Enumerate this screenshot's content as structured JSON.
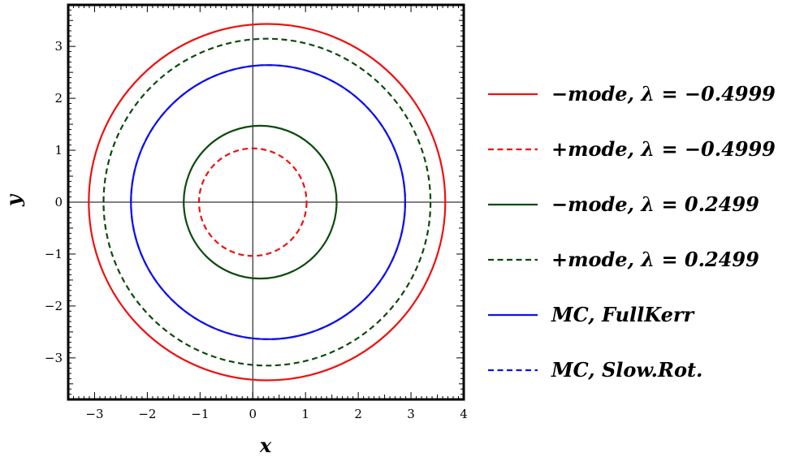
{
  "chart_data": {
    "type": "line",
    "xlabel": "x",
    "ylabel": "y",
    "xlim": [
      -3.5,
      4.0
    ],
    "ylim": [
      -3.8,
      3.8
    ],
    "x_ticks": [
      -3,
      -2,
      -1,
      0,
      1,
      2,
      3,
      4
    ],
    "y_ticks": [
      -3,
      -2,
      -1,
      0,
      1,
      2,
      3
    ],
    "grid": false,
    "legend_position": "right",
    "series": [
      {
        "name": "−mode, λ = −0.4999",
        "color": "#ee1111",
        "dash": "solid",
        "cx": 0.27,
        "cy": 0.0,
        "r": 3.38
      },
      {
        "name": "+mode, λ = −0.4999",
        "color": "#ee1111",
        "dash": "dashed",
        "cx": 0.0,
        "cy": 0.0,
        "r": 1.02
      },
      {
        "name": "−mode, λ = 0.2499",
        "color": "#0c4a0c",
        "dash": "solid",
        "cx": 0.14,
        "cy": 0.0,
        "r": 1.45
      },
      {
        "name": "+mode, λ = 0.2499",
        "color": "#0c4a0c",
        "dash": "dashed",
        "cx": 0.27,
        "cy": 0.0,
        "r": 3.1
      },
      {
        "name": "MC, FullKerr",
        "color": "#1010ee",
        "dash": "solid",
        "cx": 0.29,
        "cy": 0.0,
        "r": 2.6
      },
      {
        "name": "MC, Slow.Rot.",
        "color": "#1010ee",
        "dash": "dashed",
        "cx": 0.29,
        "cy": 0.0,
        "r": 2.6
      }
    ]
  }
}
